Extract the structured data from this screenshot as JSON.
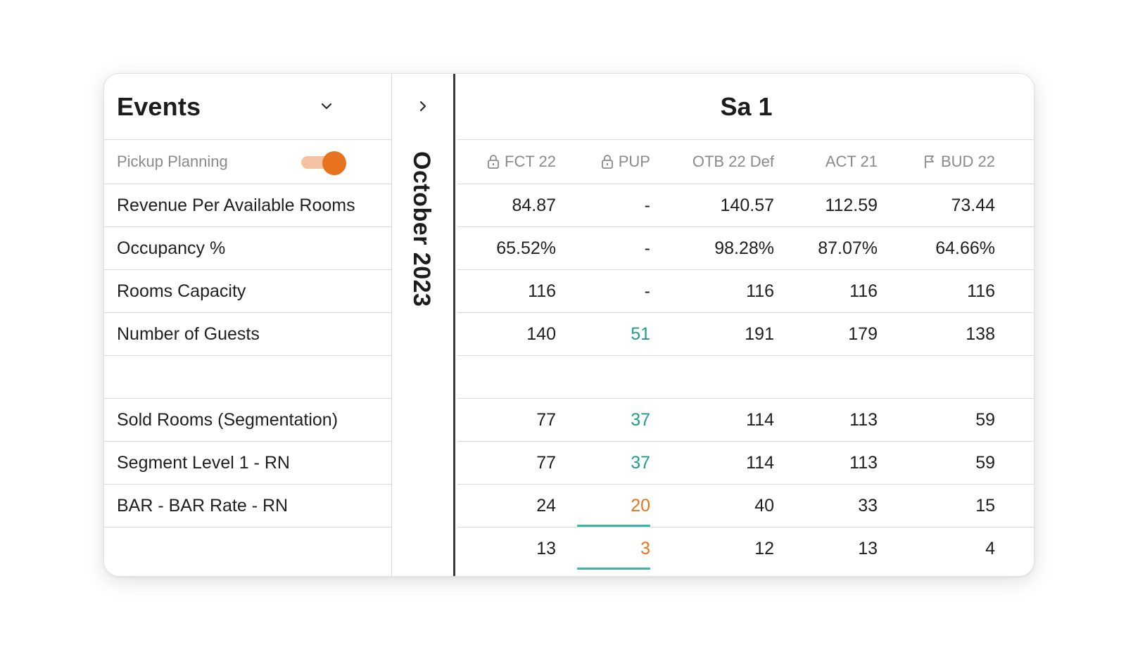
{
  "events": {
    "title": "Events"
  },
  "pickup": {
    "label": "Pickup Planning",
    "enabled": true
  },
  "month": "October 2023",
  "day": "Sa 1",
  "colors": {
    "accent": "#e8731f",
    "positive": "#1f9e8f",
    "underline": "#3fb2a6"
  },
  "columns": [
    {
      "label": "FCT 22",
      "icon": "lock-icon"
    },
    {
      "label": "PUP",
      "icon": "lock-icon"
    },
    {
      "label": "OTB 22 Def",
      "icon": ""
    },
    {
      "label": "ACT 21",
      "icon": ""
    },
    {
      "label": "BUD 22",
      "icon": "flag-icon"
    }
  ],
  "rows": [
    {
      "label": "Revenue Per Available Rooms",
      "values": [
        "84.87",
        "-",
        "140.57",
        "112.59",
        "73.44"
      ],
      "pup_style": ""
    },
    {
      "label": "Occupancy %",
      "values": [
        "65.52%",
        "-",
        "98.28%",
        "87.07%",
        "64.66%"
      ],
      "pup_style": ""
    },
    {
      "label": "Rooms Capacity",
      "values": [
        "116",
        "-",
        "116",
        "116",
        "116"
      ],
      "pup_style": ""
    },
    {
      "label": "Number of Guests",
      "values": [
        "140",
        "51",
        "191",
        "179",
        "138"
      ],
      "pup_style": "teal"
    },
    {
      "label": "",
      "values": [
        "",
        "",
        "",
        "",
        ""
      ],
      "pup_style": ""
    },
    {
      "label": "Sold Rooms (Segmentation)",
      "values": [
        "77",
        "37",
        "114",
        "113",
        "59"
      ],
      "pup_style": "teal"
    },
    {
      "label": "Segment Level 1 - RN",
      "values": [
        "77",
        "37",
        "114",
        "113",
        "59"
      ],
      "pup_style": "teal"
    },
    {
      "label": "BAR - BAR Rate - RN",
      "values": [
        "24",
        "20",
        "40",
        "33",
        "15"
      ],
      "pup_style": "orange"
    },
    {
      "label": "",
      "values": [
        "13",
        "3",
        "12",
        "13",
        "4"
      ],
      "pup_style": "orange"
    }
  ]
}
